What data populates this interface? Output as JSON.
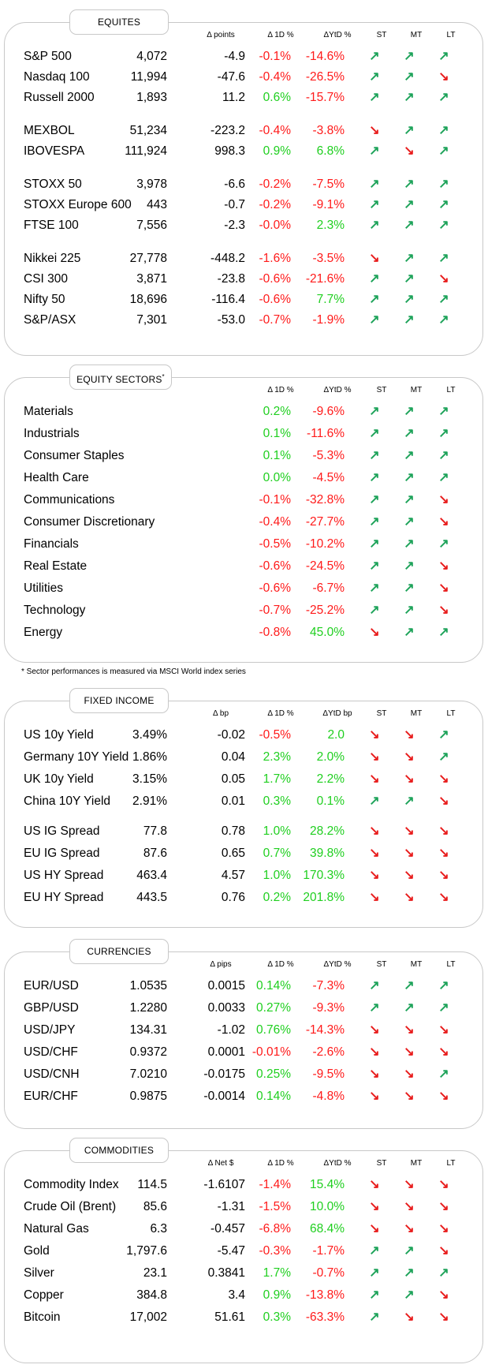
{
  "colors": {
    "positive": "#1fcf1f",
    "negative": "#ff1a1a",
    "arrow_up": "#1ea35a",
    "arrow_down": "#e81b1b",
    "border": "#c8c8c8"
  },
  "equities": {
    "title": "EQUITES",
    "headers": {
      "change": "Δ points",
      "d1": "Δ 1D %",
      "ytd": "ΔYtD %",
      "st": "ST",
      "mt": "MT",
      "lt": "LT"
    },
    "rows": [
      {
        "name": "S&P 500",
        "value": "4,072",
        "change": "-4.9",
        "d1": "-0.1%",
        "ytd": "-14.6%",
        "st": "up",
        "mt": "up",
        "lt": "up"
      },
      {
        "name": "Nasdaq 100",
        "value": "11,994",
        "change": "-47.6",
        "d1": "-0.4%",
        "ytd": "-26.5%",
        "st": "up",
        "mt": "up",
        "lt": "down"
      },
      {
        "name": "Russell 2000",
        "value": "1,893",
        "change": "11.2",
        "d1": "0.6%",
        "ytd": "-15.7%",
        "st": "up",
        "mt": "up",
        "lt": "up"
      },
      {
        "name": "MEXBOL",
        "value": "51,234",
        "change": "-223.2",
        "d1": "-0.4%",
        "ytd": "-3.8%",
        "st": "down",
        "mt": "up",
        "lt": "up"
      },
      {
        "name": "IBOVESPA",
        "value": "111,924",
        "change": "998.3",
        "d1": "0.9%",
        "ytd": "6.8%",
        "st": "up",
        "mt": "down",
        "lt": "up"
      },
      {
        "name": "STOXX 50",
        "value": "3,978",
        "change": "-6.6",
        "d1": "-0.2%",
        "ytd": "-7.5%",
        "st": "up",
        "mt": "up",
        "lt": "up"
      },
      {
        "name": "STOXX Europe 600",
        "value": "443",
        "change": "-0.7",
        "d1": "-0.2%",
        "ytd": "-9.1%",
        "st": "up",
        "mt": "up",
        "lt": "up"
      },
      {
        "name": "FTSE 100",
        "value": "7,556",
        "change": "-2.3",
        "d1": "-0.0%",
        "ytd": "2.3%",
        "st": "up",
        "mt": "up",
        "lt": "up"
      },
      {
        "name": "Nikkei 225",
        "value": "27,778",
        "change": "-448.2",
        "d1": "-1.6%",
        "ytd": "-3.5%",
        "st": "down",
        "mt": "up",
        "lt": "up"
      },
      {
        "name": "CSI 300",
        "value": "3,871",
        "change": "-23.8",
        "d1": "-0.6%",
        "ytd": "-21.6%",
        "st": "up",
        "mt": "up",
        "lt": "down"
      },
      {
        "name": "Nifty 50",
        "value": "18,696",
        "change": "-116.4",
        "d1": "-0.6%",
        "ytd": "7.7%",
        "st": "up",
        "mt": "up",
        "lt": "up"
      },
      {
        "name": "S&P/ASX",
        "value": "7,301",
        "change": "-53.0",
        "d1": "-0.7%",
        "ytd": "-1.9%",
        "st": "up",
        "mt": "up",
        "lt": "up"
      }
    ]
  },
  "sectors": {
    "title": "EQUITY SECTORS",
    "title_mark": "*",
    "headers": {
      "d1": "Δ 1D %",
      "ytd": "ΔYtD %",
      "st": "ST",
      "mt": "MT",
      "lt": "LT"
    },
    "rows": [
      {
        "name": "Materials",
        "d1": "0.2%",
        "ytd": "-9.6%",
        "st": "up",
        "mt": "up",
        "lt": "up"
      },
      {
        "name": "Industrials",
        "d1": "0.1%",
        "ytd": "-11.6%",
        "st": "up",
        "mt": "up",
        "lt": "up"
      },
      {
        "name": "Consumer Staples",
        "d1": "0.1%",
        "ytd": "-5.3%",
        "st": "up",
        "mt": "up",
        "lt": "up"
      },
      {
        "name": "Health Care",
        "d1": "0.0%",
        "ytd": "-4.5%",
        "st": "up",
        "mt": "up",
        "lt": "up"
      },
      {
        "name": "Communications",
        "d1": "-0.1%",
        "ytd": "-32.8%",
        "st": "up",
        "mt": "up",
        "lt": "down"
      },
      {
        "name": "Consumer Discretionary",
        "d1": "-0.4%",
        "ytd": "-27.7%",
        "st": "up",
        "mt": "up",
        "lt": "down"
      },
      {
        "name": "Financials",
        "d1": "-0.5%",
        "ytd": "-10.2%",
        "st": "up",
        "mt": "up",
        "lt": "up"
      },
      {
        "name": "Real Estate",
        "d1": "-0.6%",
        "ytd": "-24.5%",
        "st": "up",
        "mt": "up",
        "lt": "down"
      },
      {
        "name": "Utilities",
        "d1": "-0.6%",
        "ytd": "-6.7%",
        "st": "up",
        "mt": "up",
        "lt": "down"
      },
      {
        "name": "Technology",
        "d1": "-0.7%",
        "ytd": "-25.2%",
        "st": "up",
        "mt": "up",
        "lt": "down"
      },
      {
        "name": "Energy",
        "d1": "-0.8%",
        "ytd": "45.0%",
        "st": "down",
        "mt": "up",
        "lt": "up"
      }
    ],
    "footnote": "* Sector performances is measured via MSCI World index series"
  },
  "fixed_income": {
    "title": "FIXED INCOME",
    "headers": {
      "change": "Δ bp",
      "d1": "Δ 1D %",
      "ytd": "ΔYtD bp",
      "st": "ST",
      "mt": "MT",
      "lt": "LT"
    },
    "rows": [
      {
        "name": "US 10y Yield",
        "value": "3.49%",
        "change": "-0.02",
        "d1": "-0.5%",
        "ytd": "2.0",
        "st": "down",
        "mt": "down",
        "lt": "up"
      },
      {
        "name": "Germany 10Y Yield",
        "value": "1.86%",
        "change": "0.04",
        "d1": "2.3%",
        "ytd": "2.0%",
        "st": "down",
        "mt": "down",
        "lt": "up"
      },
      {
        "name": "UK 10y Yield",
        "value": "3.15%",
        "change": "0.05",
        "d1": "1.7%",
        "ytd": "2.2%",
        "st": "down",
        "mt": "down",
        "lt": "down"
      },
      {
        "name": "China 10Y Yield",
        "value": "2.91%",
        "change": "0.01",
        "d1": "0.3%",
        "ytd": "0.1%",
        "st": "up",
        "mt": "up",
        "lt": "down"
      },
      {
        "name": "US IG Spread",
        "value": "77.8",
        "change": "0.78",
        "d1": "1.0%",
        "ytd": "28.2%",
        "st": "down",
        "mt": "down",
        "lt": "down"
      },
      {
        "name": "EU IG Spread",
        "value": "87.6",
        "change": "0.65",
        "d1": "0.7%",
        "ytd": "39.8%",
        "st": "down",
        "mt": "down",
        "lt": "down"
      },
      {
        "name": "US HY Spread",
        "value": "463.4",
        "change": "4.57",
        "d1": "1.0%",
        "ytd": "170.3%",
        "st": "down",
        "mt": "down",
        "lt": "down"
      },
      {
        "name": "EU HY Spread",
        "value": "443.5",
        "change": "0.76",
        "d1": "0.2%",
        "ytd": "201.8%",
        "st": "down",
        "mt": "down",
        "lt": "down"
      }
    ]
  },
  "currencies": {
    "title": "CURRENCIES",
    "headers": {
      "change": "Δ pips",
      "d1": "Δ 1D %",
      "ytd": "ΔYtD %",
      "st": "ST",
      "mt": "MT",
      "lt": "LT"
    },
    "rows": [
      {
        "name": "EUR/USD",
        "value": "1.0535",
        "change": "0.0015",
        "d1": "0.14%",
        "ytd": "-7.3%",
        "st": "up",
        "mt": "up",
        "lt": "up"
      },
      {
        "name": "GBP/USD",
        "value": "1.2280",
        "change": "0.0033",
        "d1": "0.27%",
        "ytd": "-9.3%",
        "st": "up",
        "mt": "up",
        "lt": "up"
      },
      {
        "name": "USD/JPY",
        "value": "134.31",
        "change": "-1.02",
        "d1": "0.76%",
        "ytd": "-14.3%",
        "st": "down",
        "mt": "down",
        "lt": "down"
      },
      {
        "name": "USD/CHF",
        "value": "0.9372",
        "change": "0.0001",
        "d1": "-0.01%",
        "ytd": "-2.6%",
        "st": "down",
        "mt": "down",
        "lt": "down"
      },
      {
        "name": "USD/CNH",
        "value": "7.0210",
        "change": "-0.0175",
        "d1": "0.25%",
        "ytd": "-9.5%",
        "st": "down",
        "mt": "down",
        "lt": "up"
      },
      {
        "name": "EUR/CHF",
        "value": "0.9875",
        "change": "-0.0014",
        "d1": "0.14%",
        "ytd": "-4.8%",
        "st": "down",
        "mt": "down",
        "lt": "down"
      }
    ]
  },
  "commodities": {
    "title": "COMMODITIES",
    "headers": {
      "change": "Δ Net $",
      "d1": "Δ 1D %",
      "ytd": "ΔYtD %",
      "st": "ST",
      "mt": "MT",
      "lt": "LT"
    },
    "rows": [
      {
        "name": "Commodity Index",
        "value": "114.5",
        "change": "-1.6107",
        "d1": "-1.4%",
        "ytd": "15.4%",
        "st": "down",
        "mt": "down",
        "lt": "down"
      },
      {
        "name": "Crude Oil (Brent)",
        "value": "85.6",
        "change": "-1.31",
        "d1": "-1.5%",
        "ytd": "10.0%",
        "st": "down",
        "mt": "down",
        "lt": "down"
      },
      {
        "name": "Natural Gas",
        "value": "6.3",
        "change": "-0.457",
        "d1": "-6.8%",
        "ytd": "68.4%",
        "st": "down",
        "mt": "down",
        "lt": "down"
      },
      {
        "name": "Gold",
        "value": "1,797.6",
        "change": "-5.47",
        "d1": "-0.3%",
        "ytd": "-1.7%",
        "st": "up",
        "mt": "up",
        "lt": "down"
      },
      {
        "name": "Silver",
        "value": "23.1",
        "change": "0.3841",
        "d1": "1.7%",
        "ytd": "-0.7%",
        "st": "up",
        "mt": "up",
        "lt": "up"
      },
      {
        "name": "Copper",
        "value": "384.8",
        "change": "3.4",
        "d1": "0.9%",
        "ytd": "-13.8%",
        "st": "up",
        "mt": "up",
        "lt": "down"
      },
      {
        "name": "Bitcoin",
        "value": "17,002",
        "change": "51.61",
        "d1": "0.3%",
        "ytd": "-63.3%",
        "st": "up",
        "mt": "down",
        "lt": "down"
      }
    ]
  }
}
